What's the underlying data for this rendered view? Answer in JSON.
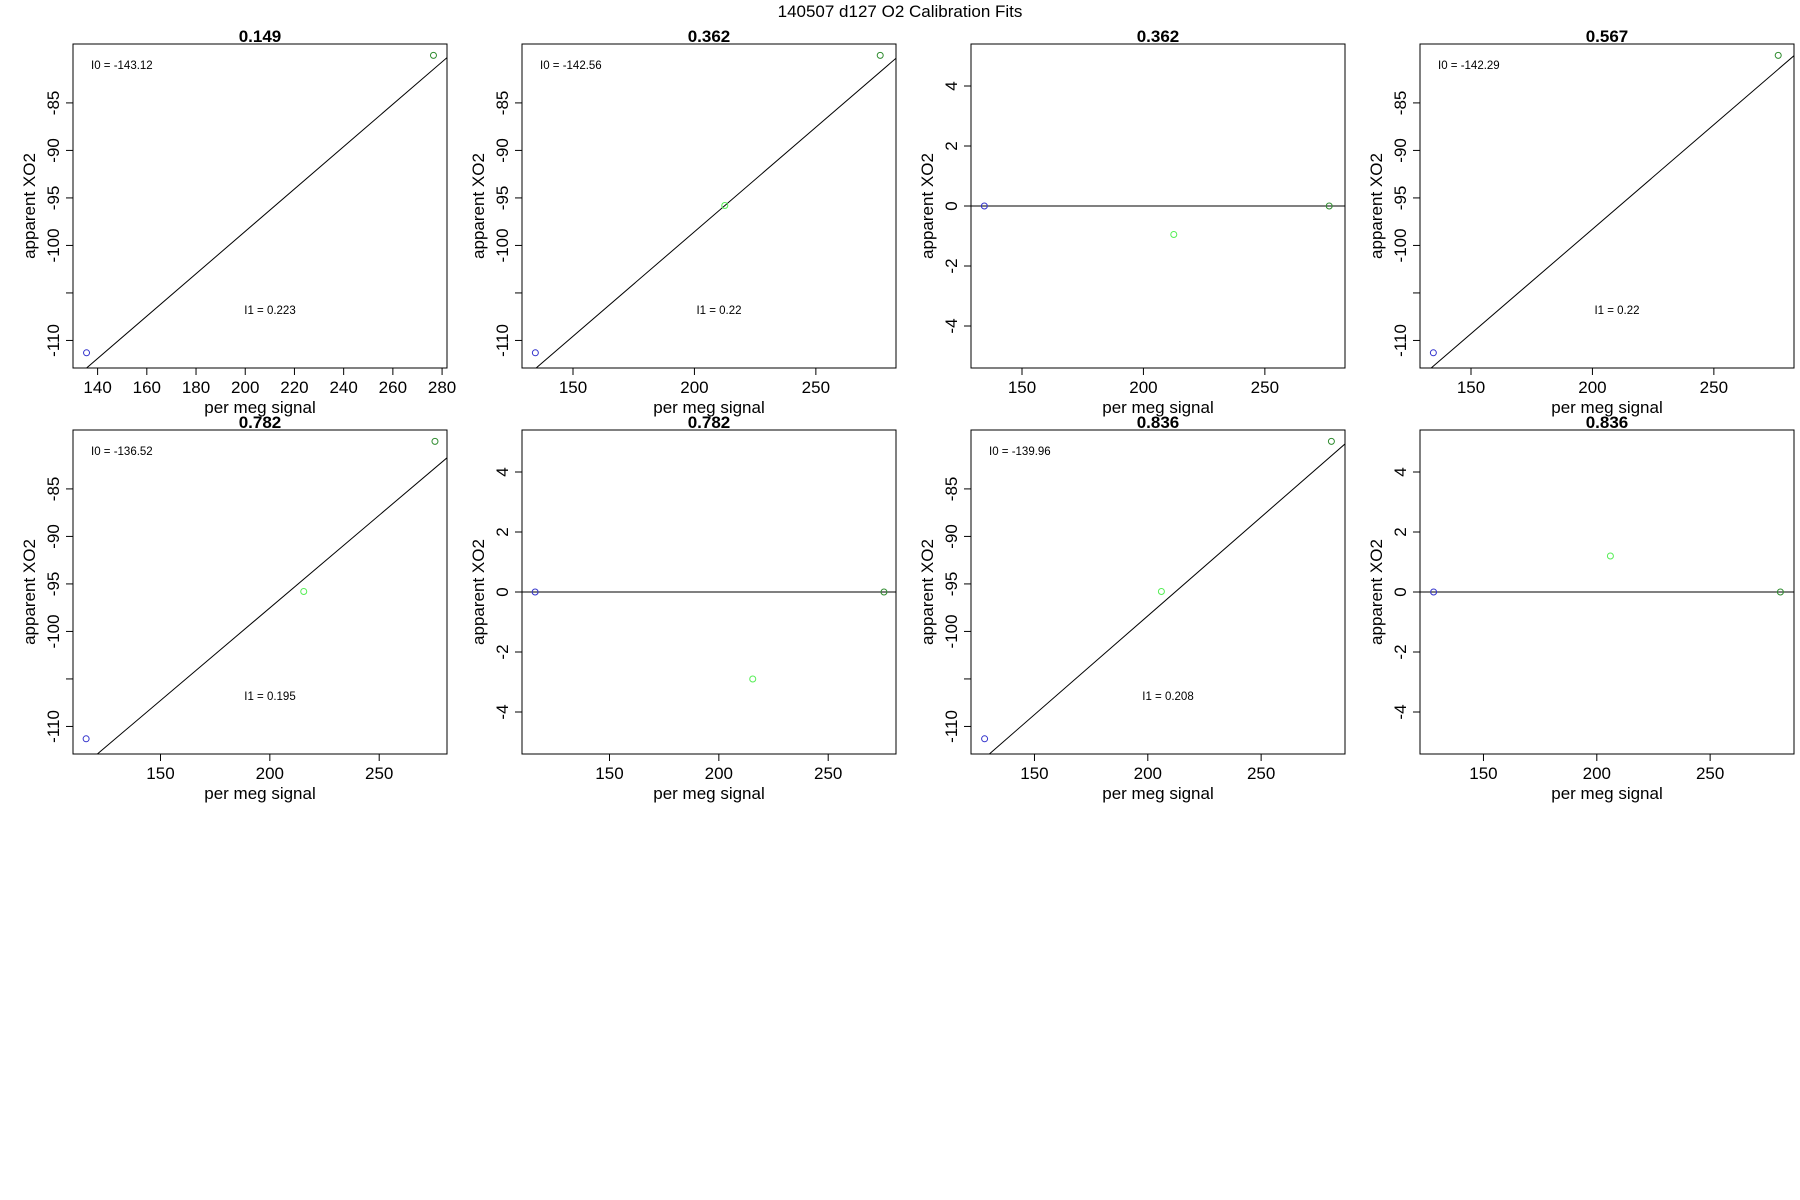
{
  "figure_title": "140507   d127   O2 Calibration Fits",
  "chart_data": [
    {
      "type": "scatter",
      "title": "0.149",
      "xlabel": "per meg signal",
      "ylabel": "apparent XO2",
      "xlim": [
        130,
        282
      ],
      "ylim": [
        -112.9,
        -78.8
      ],
      "xticks": [
        140,
        160,
        180,
        200,
        220,
        240,
        260,
        280
      ],
      "yticks": [
        -85,
        -90,
        -95,
        -100,
        -110
      ],
      "points": [
        {
          "x": 135.5,
          "y": -111.3,
          "color": "#3333cc"
        },
        {
          "x": 276.5,
          "y": -80.0,
          "color": "#2e8b2e"
        }
      ],
      "fit": {
        "slope": 0.223,
        "intercept": -143.12
      },
      "annotations": {
        "i0": "I0 =  -143.12",
        "i1": "I1 =  0.223"
      }
    },
    {
      "type": "scatter",
      "title": "0.362",
      "xlabel": "per meg signal",
      "ylabel": "apparent XO2",
      "xlim": [
        129,
        283
      ],
      "ylim": [
        -112.9,
        -78.8
      ],
      "xticks": [
        150,
        200,
        250
      ],
      "yticks": [
        -85,
        -90,
        -95,
        -100,
        -110
      ],
      "points": [
        {
          "x": 134.5,
          "y": -111.3,
          "color": "#3333cc"
        },
        {
          "x": 212.5,
          "y": -95.8,
          "color": "#55ee55"
        },
        {
          "x": 276.5,
          "y": -80.0,
          "color": "#2e8b2e"
        }
      ],
      "fit": {
        "slope": 0.22,
        "intercept": -142.56
      },
      "annotations": {
        "i0": "I0 =  -142.56",
        "i1": "I1 =  0.22"
      }
    },
    {
      "type": "scatter",
      "title": "0.362",
      "xlabel": "per meg signal",
      "ylabel": "apparent XO2",
      "xlim": [
        129,
        283
      ],
      "ylim": [
        -5.4,
        5.4
      ],
      "xticks": [
        150,
        200,
        250
      ],
      "yticks": [
        4,
        2,
        0,
        -2,
        -4
      ],
      "points": [
        {
          "x": 134.5,
          "y": 0.0,
          "color": "#3333cc"
        },
        {
          "x": 212.5,
          "y": -0.95,
          "color": "#55ee55"
        },
        {
          "x": 276.5,
          "y": 0.0,
          "color": "#2e8b2e"
        }
      ],
      "hline": 0
    },
    {
      "type": "scatter",
      "title": "0.567",
      "xlabel": "per meg signal",
      "ylabel": "apparent XO2",
      "xlim": [
        129,
        283
      ],
      "ylim": [
        -112.9,
        -78.8
      ],
      "xticks": [
        150,
        200,
        250
      ],
      "yticks": [
        -85,
        -90,
        -95,
        -100,
        -110
      ],
      "points": [
        {
          "x": 134.5,
          "y": -111.3,
          "color": "#3333cc"
        },
        {
          "x": 276.5,
          "y": -80.0,
          "color": "#2e8b2e"
        }
      ],
      "fit": {
        "slope": 0.22,
        "intercept": -142.29
      },
      "annotations": {
        "i0": "I0 =  -142.29",
        "i1": "I1 =  0.22"
      }
    },
    {
      "type": "scatter",
      "title": "0.782",
      "xlabel": "per meg signal",
      "ylabel": "apparent XO2",
      "xlim": [
        110,
        281
      ],
      "ylim": [
        -112.9,
        -78.8
      ],
      "xticks": [
        150,
        200,
        250
      ],
      "yticks": [
        -85,
        -90,
        -95,
        -100,
        -110
      ],
      "points": [
        {
          "x": 116.0,
          "y": -111.3,
          "color": "#3333cc"
        },
        {
          "x": 215.5,
          "y": -95.8,
          "color": "#55ee55"
        },
        {
          "x": 275.5,
          "y": -80.0,
          "color": "#2e8b2e"
        }
      ],
      "fit": {
        "slope": 0.195,
        "intercept": -136.52
      },
      "annotations": {
        "i0": "I0 =  -136.52",
        "i1": "I1 =  0.195"
      }
    },
    {
      "type": "scatter",
      "title": "0.782",
      "xlabel": "per meg signal",
      "ylabel": "apparent XO2",
      "xlim": [
        110,
        281
      ],
      "ylim": [
        -5.4,
        5.4
      ],
      "xticks": [
        150,
        200,
        250
      ],
      "yticks": [
        4,
        2,
        0,
        -2,
        -4
      ],
      "points": [
        {
          "x": 116.0,
          "y": 0.0,
          "color": "#3333cc"
        },
        {
          "x": 215.5,
          "y": -2.9,
          "color": "#55ee55"
        },
        {
          "x": 275.5,
          "y": 0.0,
          "color": "#2e8b2e"
        }
      ],
      "hline": 0
    },
    {
      "type": "scatter",
      "title": "0.836",
      "xlabel": "per meg signal",
      "ylabel": "apparent XO2",
      "xlim": [
        122,
        287
      ],
      "ylim": [
        -112.9,
        -78.8
      ],
      "xticks": [
        150,
        200,
        250
      ],
      "yticks": [
        -85,
        -90,
        -95,
        -100,
        -110
      ],
      "points": [
        {
          "x": 128.0,
          "y": -111.3,
          "color": "#3333cc"
        },
        {
          "x": 206.0,
          "y": -95.8,
          "color": "#55ee55"
        },
        {
          "x": 281.0,
          "y": -80.0,
          "color": "#2e8b2e"
        }
      ],
      "fit": {
        "slope": 0.208,
        "intercept": -139.96
      },
      "annotations": {
        "i0": "I0 =  -139.96",
        "i1": "I1 =  0.208"
      }
    },
    {
      "type": "scatter",
      "title": "0.836",
      "xlabel": "per meg signal",
      "ylabel": "apparent XO2",
      "xlim": [
        122,
        287
      ],
      "ylim": [
        -5.4,
        5.4
      ],
      "xticks": [
        150,
        200,
        250
      ],
      "yticks": [
        4,
        2,
        0,
        -2,
        -4
      ],
      "points": [
        {
          "x": 128.0,
          "y": 0.0,
          "color": "#3333cc"
        },
        {
          "x": 206.0,
          "y": 1.2,
          "color": "#55ee55"
        },
        {
          "x": 281.0,
          "y": 0.0,
          "color": "#2e8b2e"
        }
      ],
      "hline": 0
    }
  ]
}
